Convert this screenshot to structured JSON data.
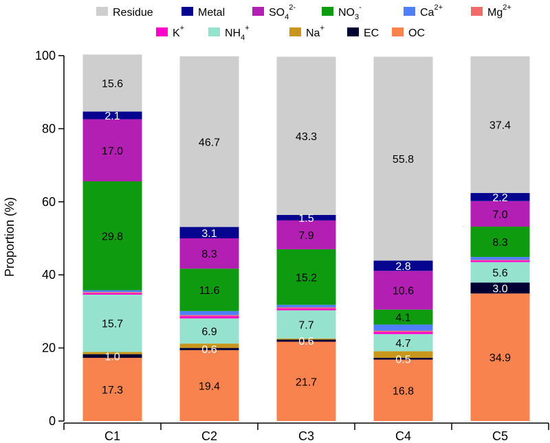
{
  "chart_data": {
    "type": "bar",
    "stacked": true,
    "title": "",
    "xlabel": "",
    "ylabel": "Proportion (%)",
    "ylim": [
      0,
      100
    ],
    "yticks": [
      "0",
      "20",
      "40",
      "60",
      "80",
      "100"
    ],
    "categories": [
      "C1",
      "C2",
      "C3",
      "C4",
      "C5"
    ],
    "series": [
      {
        "name": "OC",
        "color": "#f8834f",
        "values": [
          17.3,
          19.4,
          21.7,
          16.8,
          34.9
        ]
      },
      {
        "name": "EC",
        "color": "#000033",
        "values": [
          1.0,
          0.6,
          0.6,
          0.5,
          3.0
        ]
      },
      {
        "name": "Na+",
        "color": "#c8961b",
        "values": [
          0.6,
          1.2,
          0.3,
          1.8,
          0.0
        ]
      },
      {
        "name": "NH4+",
        "color": "#95e2cf",
        "values": [
          15.7,
          6.9,
          7.7,
          4.7,
          5.6
        ]
      },
      {
        "name": "K+",
        "color": "#ff00cc",
        "values": [
          0.4,
          0.6,
          0.5,
          0.6,
          0.4
        ]
      },
      {
        "name": "Mg2+",
        "color": "#f26a6a",
        "values": [
          0.3,
          0.3,
          0.3,
          0.3,
          0.2
        ]
      },
      {
        "name": "Ca2+",
        "color": "#4f7fff",
        "values": [
          0.5,
          1.1,
          0.7,
          1.7,
          0.8
        ]
      },
      {
        "name": "NO3-",
        "color": "#0f9b0f",
        "values": [
          29.8,
          11.6,
          15.2,
          4.1,
          8.3
        ]
      },
      {
        "name": "SO42-",
        "color": "#b31fb3",
        "values": [
          17.0,
          8.3,
          7.9,
          10.6,
          7.0
        ]
      },
      {
        "name": "Metal",
        "color": "#05058f",
        "values": [
          2.1,
          3.1,
          1.5,
          2.8,
          2.2
        ]
      },
      {
        "name": "Residue",
        "color": "#cecece",
        "values": [
          15.6,
          46.7,
          43.3,
          55.8,
          37.4
        ]
      }
    ],
    "data_labels": [
      {
        "category": "C1",
        "series": "OC",
        "text": "17.3"
      },
      {
        "category": "C1",
        "series": "EC",
        "text": "1.0"
      },
      {
        "category": "C1",
        "series": "NH4+",
        "text": "15.7"
      },
      {
        "category": "C1",
        "series": "NO3-",
        "text": "29.8"
      },
      {
        "category": "C1",
        "series": "SO42-",
        "text": "17.0"
      },
      {
        "category": "C1",
        "series": "Metal",
        "text": "2.1"
      },
      {
        "category": "C1",
        "series": "Residue",
        "text": "15.6"
      },
      {
        "category": "C2",
        "series": "OC",
        "text": "19.4"
      },
      {
        "category": "C2",
        "series": "EC",
        "text": "0.6"
      },
      {
        "category": "C2",
        "series": "NH4+",
        "text": "6.9"
      },
      {
        "category": "C2",
        "series": "NO3-",
        "text": "11.6"
      },
      {
        "category": "C2",
        "series": "SO42-",
        "text": "8.3"
      },
      {
        "category": "C2",
        "series": "Metal",
        "text": "3.1"
      },
      {
        "category": "C2",
        "series": "Residue",
        "text": "46.7"
      },
      {
        "category": "C3",
        "series": "OC",
        "text": "21.7"
      },
      {
        "category": "C3",
        "series": "EC",
        "text": "0.6"
      },
      {
        "category": "C3",
        "series": "NH4+",
        "text": "7.7"
      },
      {
        "category": "C3",
        "series": "NO3-",
        "text": "15.2"
      },
      {
        "category": "C3",
        "series": "SO42-",
        "text": "7.9"
      },
      {
        "category": "C3",
        "series": "Metal",
        "text": "1.5"
      },
      {
        "category": "C3",
        "series": "Residue",
        "text": "43.3"
      },
      {
        "category": "C4",
        "series": "OC",
        "text": "16.8"
      },
      {
        "category": "C4",
        "series": "EC",
        "text": "0.5"
      },
      {
        "category": "C4",
        "series": "NH4+",
        "text": "4.7"
      },
      {
        "category": "C4",
        "series": "NO3-",
        "text": "4.1"
      },
      {
        "category": "C4",
        "series": "SO42-",
        "text": "10.6"
      },
      {
        "category": "C4",
        "series": "Metal",
        "text": "2.8"
      },
      {
        "category": "C4",
        "series": "Residue",
        "text": "55.8"
      },
      {
        "category": "C5",
        "series": "OC",
        "text": "34.9"
      },
      {
        "category": "C5",
        "series": "EC",
        "text": "3.0"
      },
      {
        "category": "C5",
        "series": "NH4+",
        "text": "5.6"
      },
      {
        "category": "C5",
        "series": "NO3-",
        "text": "8.3"
      },
      {
        "category": "C5",
        "series": "SO42-",
        "text": "7.0"
      },
      {
        "category": "C5",
        "series": "Metal",
        "text": "2.2"
      },
      {
        "category": "C5",
        "series": "Residue",
        "text": "37.4"
      }
    ],
    "legend": {
      "placement": "top",
      "items": [
        {
          "series": "Residue",
          "base": "Residue",
          "sub": "",
          "sup": ""
        },
        {
          "series": "Metal",
          "base": "Metal",
          "sub": "",
          "sup": ""
        },
        {
          "series": "SO42-",
          "base": "SO",
          "sub": "4",
          "sup": "2-"
        },
        {
          "series": "NO3-",
          "base": "NO",
          "sub": "3",
          "sup": "-"
        },
        {
          "series": "Ca2+",
          "base": "Ca",
          "sub": "",
          "sup": "2+"
        },
        {
          "series": "Mg2+",
          "base": "Mg",
          "sub": "",
          "sup": "2+"
        },
        {
          "series": "K+",
          "base": "K",
          "sub": "",
          "sup": "+"
        },
        {
          "series": "NH4+",
          "base": "NH",
          "sub": "4",
          "sup": "+"
        },
        {
          "series": "Na+",
          "base": "Na",
          "sub": "",
          "sup": "+"
        },
        {
          "series": "EC",
          "base": "EC",
          "sub": "",
          "sup": ""
        },
        {
          "series": "OC",
          "base": "OC",
          "sub": "",
          "sup": ""
        }
      ]
    }
  }
}
